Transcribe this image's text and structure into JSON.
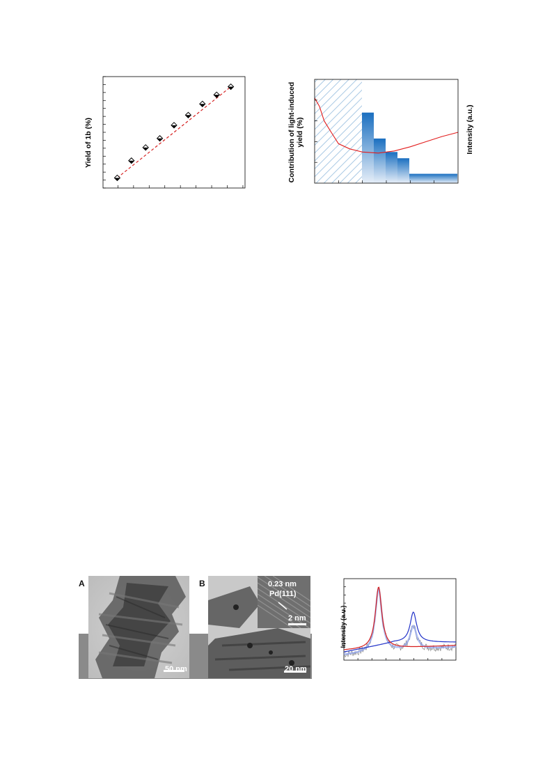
{
  "figures": {
    "yield_plot": {
      "ylabel": "Yield of  1b (%)"
    },
    "light_plot": {
      "ylabel_left_line1": "Contribution of light-induced",
      "ylabel_left_line2": "yield (%)",
      "ylabel_right": "Intensity (a.u.)"
    },
    "tem": {
      "panel_a": "A",
      "panel_b": "B",
      "scale_a": "50 nm",
      "scale_b": "20 nm",
      "inset_scale": "2 nm",
      "inset_spacing": "0.23 nm",
      "inset_plane": "Pd(111)"
    },
    "spectrum_plot": {
      "ylabel": "Intensity (a.u.)"
    }
  },
  "chart_data": [
    {
      "type": "scatter",
      "ylabel": "Yield of  1b (%)",
      "x": [
        1,
        2,
        3,
        4,
        5,
        6,
        7,
        8,
        9
      ],
      "series": [
        {
          "values": [
            10,
            27,
            40,
            49,
            62,
            72,
            83,
            92,
            100
          ]
        }
      ],
      "fit": "linear-dashed",
      "colors": {
        "marker": "#000000",
        "fit": "#d62020"
      }
    },
    {
      "type": "bar",
      "ylabel": "Contribution of light-induced yield (%)",
      "y2label": "Intensity (a.u.)",
      "values": [
        68,
        43,
        30,
        24,
        9
      ],
      "widths": [
        1,
        1,
        1,
        1,
        3
      ],
      "hatched_region": true,
      "line_series_points": [
        [
          0,
          82
        ],
        [
          0.3,
          74
        ],
        [
          0.6,
          60
        ],
        [
          1,
          50
        ],
        [
          1.5,
          38
        ],
        [
          2.2,
          33
        ],
        [
          3,
          30
        ],
        [
          4,
          29
        ],
        [
          5,
          31
        ],
        [
          6,
          35
        ],
        [
          7,
          40
        ],
        [
          8,
          45
        ],
        [
          9,
          49
        ]
      ],
      "colors": {
        "bar": "#1a6fc0",
        "line": "#e21b1b",
        "hatch": "#a9c9e4"
      }
    },
    {
      "type": "line",
      "ylabel": "Intensity (a.u.)",
      "series": [
        {
          "color": "#d61e1e",
          "peak_x": 0.31,
          "peak_height": 0.86
        },
        {
          "color": "#1f30c8",
          "peak_x": 0.62,
          "peak_height": 0.57
        }
      ],
      "colors": {
        "raw": "#909090",
        "fit": "#8fa3f0"
      }
    }
  ]
}
